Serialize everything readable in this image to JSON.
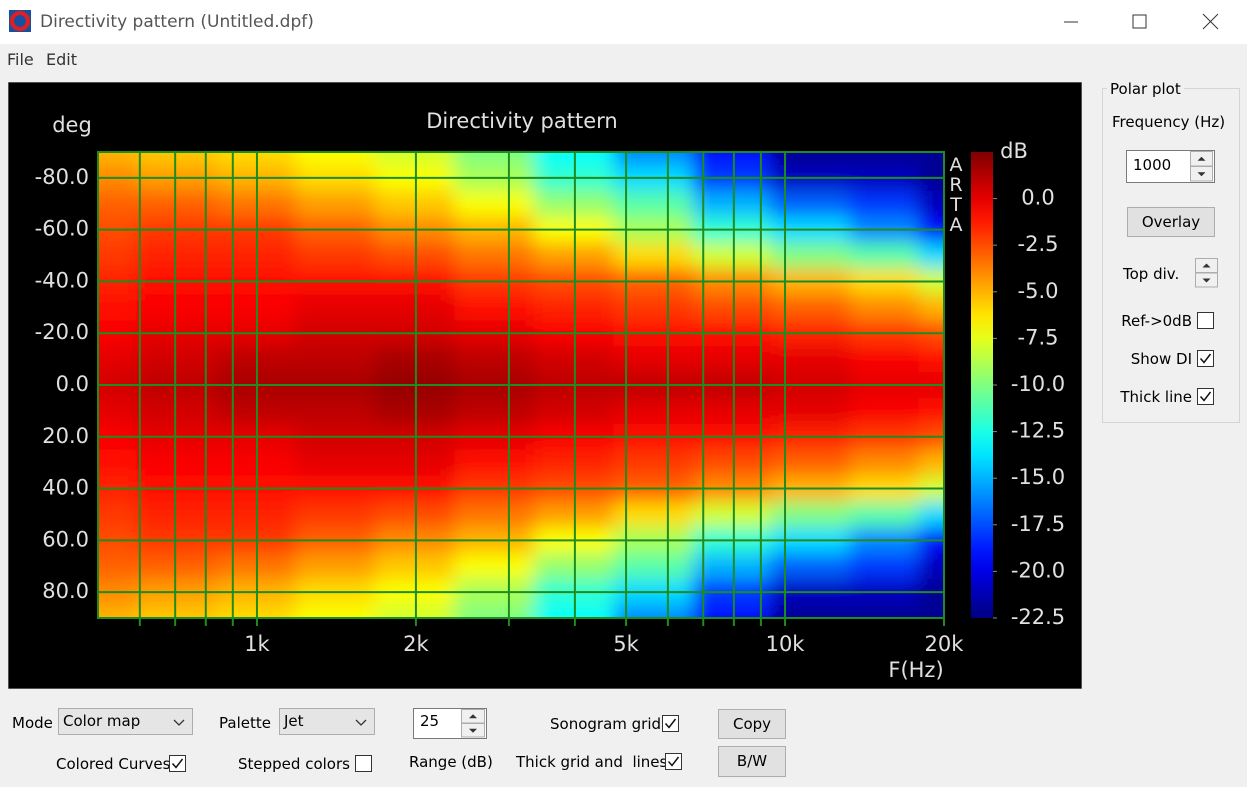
{
  "window": {
    "title": "Directivity pattern (Untitled.dpf)",
    "menu": [
      "File",
      "Edit"
    ]
  },
  "chart_data": {
    "type": "heatmap",
    "title": "Directivity pattern",
    "ylabel": "deg",
    "xlabel": "F(Hz)",
    "colorbar_label": "dB",
    "watermark": "ARTA",
    "colormap": "jet",
    "xscale": "log",
    "y_reversed": true,
    "grid": true,
    "grid_color": "#1e8c1e",
    "x": [
      500,
      700,
      1000,
      1400,
      2000,
      2800,
      4000,
      5600,
      8000,
      11000,
      16000,
      20000
    ],
    "y": [
      -90,
      -80,
      -70,
      -60,
      -50,
      -40,
      -30,
      -20,
      -10,
      0,
      10,
      20,
      30,
      40,
      50,
      60,
      70,
      80,
      90
    ],
    "z": [
      [
        -5,
        -5.5,
        -6,
        -7,
        -8,
        -10,
        -13,
        -16,
        -19,
        -22,
        -22,
        -22
      ],
      [
        -4,
        -4.5,
        -5,
        -6,
        -7,
        -9,
        -12,
        -14,
        -18,
        -21,
        -21,
        -22
      ],
      [
        -3,
        -3,
        -3.5,
        -4.5,
        -5.5,
        -7,
        -9.5,
        -11,
        -15,
        -17,
        -18,
        -21
      ],
      [
        -2.5,
        -2,
        -2,
        -3,
        -4,
        -5,
        -7,
        -9,
        -12,
        -14,
        -16,
        -19
      ],
      [
        -2,
        -1.5,
        -1.5,
        -2,
        -2.5,
        -3.5,
        -4.5,
        -6,
        -8,
        -10,
        -11,
        -14
      ],
      [
        -1.5,
        -1,
        -1,
        -1,
        -1,
        -2,
        -2.5,
        -3,
        -4,
        -5,
        -6,
        -8
      ],
      [
        -1,
        -0.5,
        -0.5,
        0,
        0,
        -1,
        -1.5,
        -2,
        -2.5,
        -3,
        -4,
        -5
      ],
      [
        -0.5,
        0,
        0,
        0.5,
        0.5,
        0,
        -0.5,
        -1,
        -1,
        -1.5,
        -2,
        -2.5
      ],
      [
        0,
        0.5,
        1,
        1,
        1.5,
        1,
        0.5,
        0,
        0,
        0,
        -0.5,
        -1
      ],
      [
        0.5,
        1,
        1.5,
        1.5,
        2,
        1.5,
        1,
        1,
        1,
        0.5,
        0,
        0
      ],
      [
        0,
        0.5,
        1,
        1,
        1.5,
        1,
        0.5,
        0,
        0,
        0,
        -0.5,
        -1
      ],
      [
        -0.5,
        0,
        0,
        0.5,
        0.5,
        0,
        -0.5,
        -1,
        -1,
        -1.5,
        -2,
        -2.5
      ],
      [
        -1,
        -0.5,
        -0.5,
        0,
        0,
        -1,
        -1.5,
        -2,
        -2.5,
        -3,
        -4,
        -5
      ],
      [
        -1.5,
        -1,
        -1,
        -1,
        -1,
        -2,
        -2.5,
        -3,
        -4,
        -5,
        -6,
        -8
      ],
      [
        -2,
        -1.5,
        -1.5,
        -2,
        -2.5,
        -3.5,
        -4.5,
        -6,
        -8,
        -10,
        -11,
        -14
      ],
      [
        -2.5,
        -2,
        -2,
        -3,
        -4,
        -5,
        -7,
        -9,
        -12,
        -14,
        -16,
        -19
      ],
      [
        -3,
        -3,
        -3.5,
        -4.5,
        -5.5,
        -7,
        -9.5,
        -11,
        -15,
        -17,
        -18,
        -21
      ],
      [
        -4,
        -4.5,
        -5,
        -6,
        -7,
        -9,
        -12,
        -14,
        -18,
        -21,
        -21,
        -22
      ],
      [
        -5,
        -5.5,
        -6,
        -7,
        -8,
        -10,
        -13,
        -16,
        -19,
        -22,
        -22,
        -22
      ]
    ],
    "xlim": [
      500,
      20000
    ],
    "xticks": [
      {
        "value": 1000,
        "label": "1k"
      },
      {
        "value": 2000,
        "label": "2k"
      },
      {
        "value": 5000,
        "label": "5k"
      },
      {
        "value": 10000,
        "label": "10k"
      },
      {
        "value": 20000,
        "label": "20k"
      }
    ],
    "xgrid_minor": [
      600,
      700,
      800,
      900,
      3000,
      4000,
      6000,
      7000,
      8000,
      9000
    ],
    "ylim": [
      -90,
      90
    ],
    "yticks": [
      {
        "value": -80,
        "label": "-80.0"
      },
      {
        "value": -60,
        "label": "-60.0"
      },
      {
        "value": -40,
        "label": "-40.0"
      },
      {
        "value": -20,
        "label": "-20.0"
      },
      {
        "value": 0,
        "label": "0.0"
      },
      {
        "value": 20,
        "label": "20.0"
      },
      {
        "value": 40,
        "label": "40.0"
      },
      {
        "value": 60,
        "label": "60.0"
      },
      {
        "value": 80,
        "label": "80.0"
      }
    ],
    "clim": [
      -22.5,
      2.5
    ],
    "cticks": [
      {
        "value": 0,
        "label": "0.0"
      },
      {
        "value": -2.5,
        "label": "-2.5"
      },
      {
        "value": -5,
        "label": "-5.0"
      },
      {
        "value": -7.5,
        "label": "-7.5"
      },
      {
        "value": -10,
        "label": "-10.0"
      },
      {
        "value": -12.5,
        "label": "-12.5"
      },
      {
        "value": -15,
        "label": "-15.0"
      },
      {
        "value": -17.5,
        "label": "-17.5"
      },
      {
        "value": -20,
        "label": "-20.0"
      },
      {
        "value": -22.5,
        "label": "-22.5"
      }
    ]
  },
  "polar_plot": {
    "title": "Polar plot",
    "frequency_label": "Frequency (Hz)",
    "frequency": 1000,
    "overlay": "Overlay",
    "top_div": "Top div.",
    "checkboxes": [
      {
        "label": "Ref->0dB",
        "checked": false
      },
      {
        "label": "Show DI",
        "checked": true
      },
      {
        "label": "Thick line",
        "checked": true
      }
    ]
  },
  "controls": {
    "mode_label": "Mode",
    "mode": "Color map",
    "palette_label": "Palette",
    "palette": "Jet",
    "range": 25,
    "range_label": "Range (dB)",
    "checkboxes": [
      {
        "label": "Sonogram grid",
        "checked": true
      },
      {
        "label": "Thick grid and  lines",
        "checked": true
      },
      {
        "label": "Colored Curves",
        "checked": true
      },
      {
        "label": "Stepped colors",
        "checked": false
      }
    ],
    "buttons": [
      "Copy",
      "B/W"
    ]
  }
}
